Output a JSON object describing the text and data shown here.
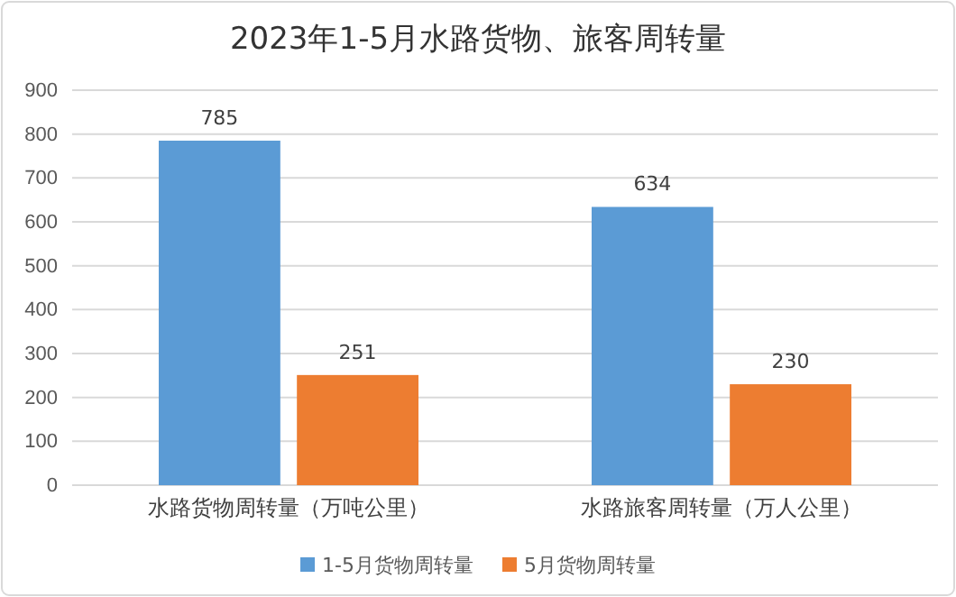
{
  "chart_data": {
    "type": "bar",
    "title": "2023年1-5月水路货物、旅客周转量",
    "categories": [
      "水路货物周转量（万吨公里）",
      "水路旅客周转量（万人公里）"
    ],
    "series": [
      {
        "name": "1-5月货物周转量",
        "color": "#5b9bd5",
        "values": [
          785,
          634
        ]
      },
      {
        "name": "5月货物周转量",
        "color": "#ed7d31",
        "values": [
          251,
          230
        ]
      }
    ],
    "ylim": [
      0,
      900
    ],
    "yticks": [
      0,
      100,
      200,
      300,
      400,
      500,
      600,
      700,
      800,
      900
    ],
    "grid": "y",
    "legend": "bottom",
    "data_labels": true
  }
}
